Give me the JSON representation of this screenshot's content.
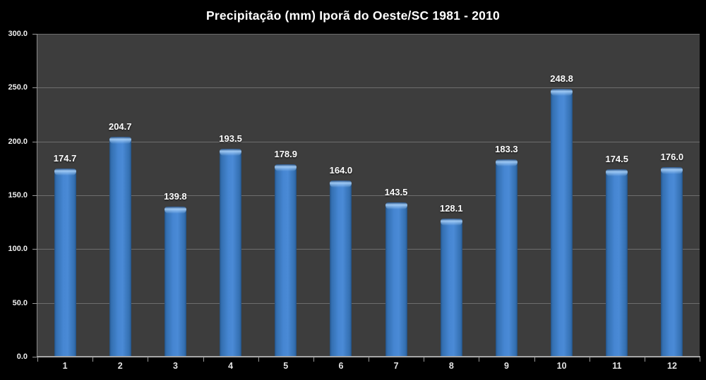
{
  "chart_data": {
    "type": "bar",
    "title": "Precipitação (mm) Iporã do Oeste/SC 1981 - 2010",
    "categories": [
      "1",
      "2",
      "3",
      "4",
      "5",
      "6",
      "7",
      "8",
      "9",
      "10",
      "11",
      "12"
    ],
    "values": [
      174.7,
      204.7,
      139.8,
      193.5,
      178.9,
      164.0,
      143.5,
      128.1,
      183.3,
      248.8,
      174.5,
      176.0
    ],
    "xlabel": "",
    "ylabel": "",
    "ylim": [
      0,
      300
    ],
    "ytick_interval": 50,
    "yticks": [
      "0.0",
      "50.0",
      "100.0",
      "150.0",
      "200.0",
      "250.0",
      "300.0"
    ],
    "grid": true,
    "legend": false,
    "value_labels_shown": true,
    "colors": {
      "page_background": "#000000",
      "plot_background": "#3d3d3d",
      "bar_center": "#4a8ad6",
      "bar_edge": "#28598f",
      "bar_highlight": "#a8d0f8",
      "gridline": "#6e6e6e",
      "axis": "#a8a8a8",
      "title_text": "#ffffff",
      "tick_text": "#eeeeee"
    }
  }
}
